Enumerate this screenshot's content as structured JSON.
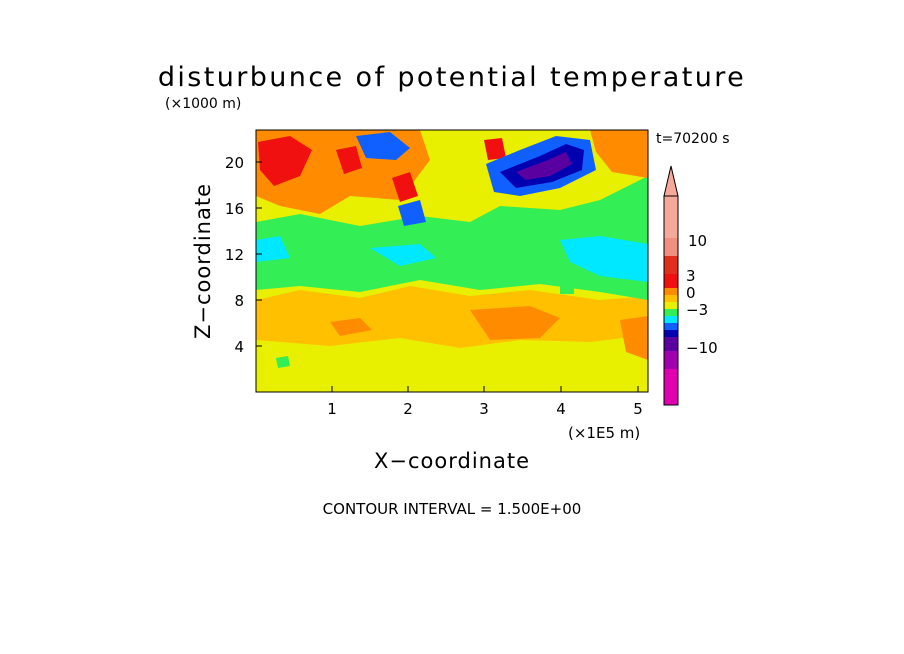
{
  "chart_data": {
    "type": "heatmap",
    "title": "disturbunce of potential temperature",
    "subtitle": "(×1000 m)",
    "time_label": "t=70200 s",
    "xlabel": "X−coordinate",
    "xunit": "(×1E5 m)",
    "ylabel": "Z−coordinate",
    "x_ticks": [
      "1",
      "2",
      "3",
      "4",
      "5"
    ],
    "y_ticks": [
      "4",
      "8",
      "12",
      "16",
      "20"
    ],
    "xlim": [
      0,
      5.15
    ],
    "ylim": [
      0,
      22.8
    ],
    "footer": "CONTOUR INTERVAL = 1.500E+00",
    "colorbar": {
      "tick_labels": [
        "10",
        "3",
        "0",
        "−3",
        "−10"
      ],
      "tick_values": [
        10,
        3,
        0,
        -3,
        -10
      ],
      "colors_top_to_bottom": [
        "#f4a99a",
        "#f08f80",
        "#e0301c",
        "#f01010",
        "#ff8c00",
        "#ffc000",
        "#e8f000",
        "#33ee55",
        "#00e8ff",
        "#1060ff",
        "#0000b0",
        "#5a00a0",
        "#a000b0",
        "#e000b0"
      ],
      "arrow_top_color": "#f4a99a"
    },
    "regions": [
      {
        "desc": "background",
        "value": 1.0,
        "color": "#e8f000"
      },
      {
        "desc": "lower layer warm band",
        "value": 1.5,
        "color": "#ffc000"
      },
      {
        "desc": "mid-level cool layer",
        "value": -1.0,
        "color": "#33ee55"
      },
      {
        "desc": "cyan patches",
        "value": -2.0,
        "color": "#00e8ff"
      },
      {
        "desc": "upper cold core",
        "value": -9.0,
        "color": "#5a00a0"
      },
      {
        "desc": "upper warm anomalies",
        "value": 4.0,
        "color": "#f01010"
      }
    ]
  }
}
